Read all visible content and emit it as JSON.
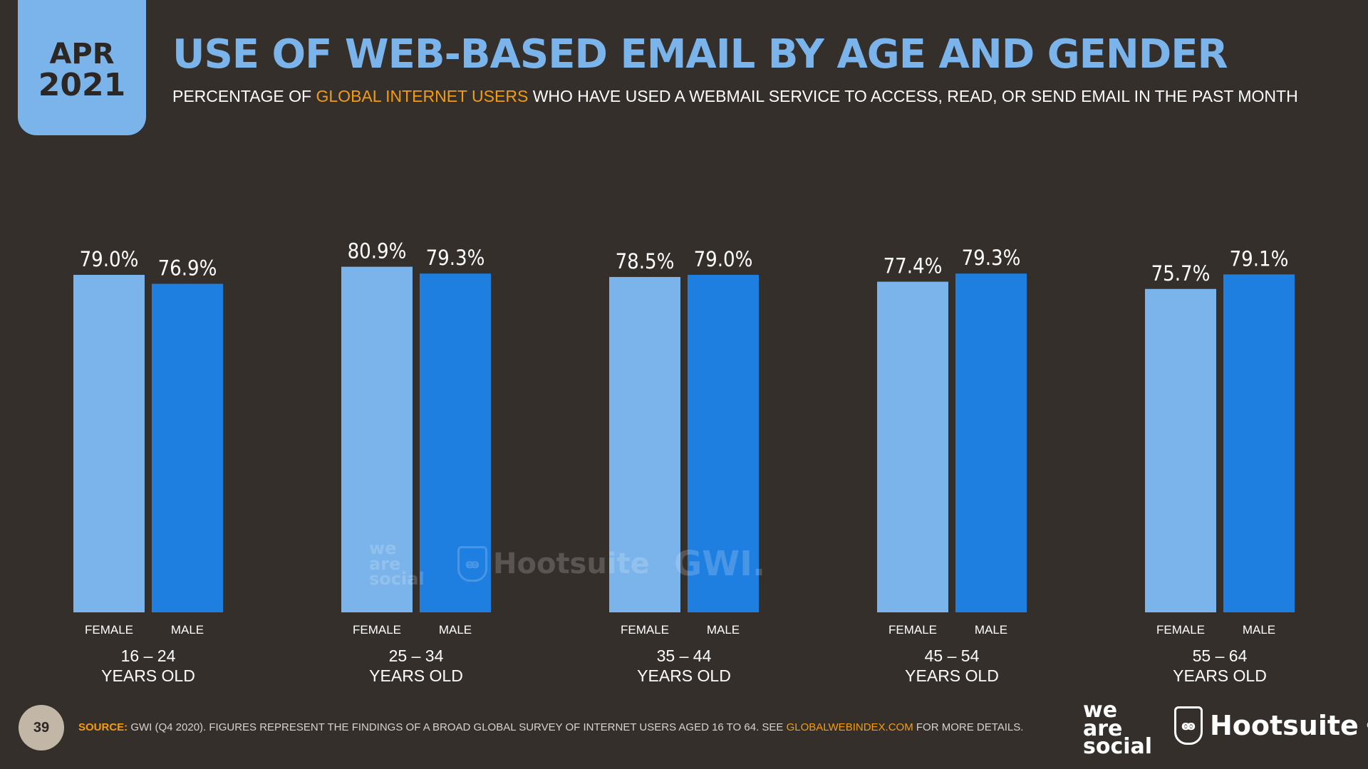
{
  "badge": {
    "month": "APR",
    "year": "2021"
  },
  "header": {
    "title": "USE OF WEB-BASED EMAIL BY AGE AND GENDER",
    "subtitle_pre": "PERCENTAGE OF ",
    "subtitle_highlight": "GLOBAL INTERNET USERS",
    "subtitle_post": " WHO HAVE USED A WEBMAIL SERVICE TO ACCESS, READ, OR SEND EMAIL IN THE PAST MONTH"
  },
  "colors": {
    "female": "#7ab4ea",
    "male": "#1f7fe0",
    "accent": "#f39c12",
    "background": "#352f2c"
  },
  "chart_data": {
    "type": "bar",
    "categories": [
      {
        "range": "16 – 24",
        "unit": "YEARS OLD"
      },
      {
        "range": "25 – 34",
        "unit": "YEARS OLD"
      },
      {
        "range": "35 – 44",
        "unit": "YEARS OLD"
      },
      {
        "range": "45 – 54",
        "unit": "YEARS OLD"
      },
      {
        "range": "55 – 64",
        "unit": "YEARS OLD"
      }
    ],
    "series": [
      {
        "name": "FEMALE",
        "values": [
          79.0,
          80.9,
          78.5,
          77.4,
          75.7
        ],
        "labels": [
          "79.0%",
          "80.9%",
          "78.5%",
          "77.4%",
          "75.7%"
        ]
      },
      {
        "name": "MALE",
        "values": [
          76.9,
          79.3,
          79.0,
          79.3,
          79.1
        ],
        "labels": [
          "76.9%",
          "79.3%",
          "79.0%",
          "79.3%",
          "79.1%"
        ]
      }
    ],
    "ylim": [
      0,
      100
    ]
  },
  "watermark": {
    "was": "we are social",
    "hootsuite": "Hootsuite",
    "gwi": "GWI."
  },
  "footer": {
    "page": "39",
    "source_label": "SOURCE:",
    "source_text": " GWI (Q4 2020). FIGURES REPRESENT THE FINDINGS OF A BROAD GLOBAL SURVEY OF INTERNET USERS AGED 16 TO 64. SEE ",
    "source_link": "GLOBALWEBINDEX.COM",
    "source_end": " FOR MORE DETAILS.",
    "logo_was": "we are social",
    "logo_hootsuite": "Hootsuite"
  }
}
